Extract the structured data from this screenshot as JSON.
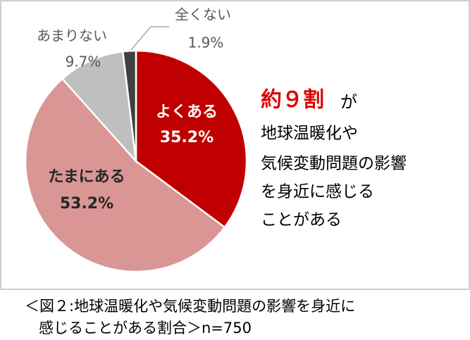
{
  "chart_data": {
    "type": "pie",
    "categories": [
      "よくある",
      "たまにある",
      "あまりない",
      "全くない"
    ],
    "values": [
      35.2,
      53.2,
      9.7,
      1.9
    ],
    "value_labels": [
      "35.2%",
      "53.2%",
      "9.7%",
      "1.9%"
    ],
    "colors": [
      "#c00000",
      "#d99694",
      "#bfbfbf",
      "#404040"
    ],
    "annotation": {
      "emphasis": "約９割",
      "rest": "が",
      "lines": [
        "地球温暖化や",
        "気候変動問題の影響",
        "を身近に感じる",
        "ことがある"
      ]
    }
  },
  "caption": [
    "＜図２:地球温暖化や気候変動問題の影響を身近に",
    "感じることがある割合＞n=750"
  ]
}
